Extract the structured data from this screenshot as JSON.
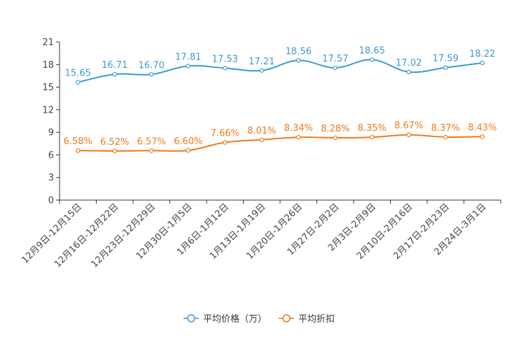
{
  "chart_data": {
    "type": "line",
    "title": "",
    "xlabel": "",
    "ylabel": "",
    "ylim": [
      0,
      21
    ],
    "yticks": [
      0,
      3,
      6,
      9,
      12,
      15,
      18,
      21
    ],
    "grid": false,
    "legend_position": "bottom-center",
    "categories": [
      "12月9日-12月15日",
      "12月16日-12月22日",
      "12月23日-12月29日",
      "12月30日-1月5日",
      "1月6日-1月12日",
      "1月13日-1月19日",
      "1月20日-1月26日",
      "1月27日-2月2日",
      "2月3日-2月9日",
      "2月10日-2月16日",
      "2月17日-2月23日",
      "2月24日-3月1日"
    ],
    "series": [
      {
        "name": "平均价格（万）",
        "color": "#3b9ccf",
        "values": [
          15.65,
          16.71,
          16.7,
          17.81,
          17.53,
          17.21,
          18.56,
          17.57,
          18.65,
          17.02,
          17.59,
          18.22
        ],
        "labels": [
          "15.65",
          "16.71",
          "16.70",
          "17.81",
          "17.53",
          "17.21",
          "18.56",
          "17.57",
          "18.65",
          "17.02",
          "17.59",
          "18.22"
        ]
      },
      {
        "name": "平均折扣",
        "color": "#f07a1a",
        "values": [
          6.58,
          6.52,
          6.57,
          6.6,
          7.66,
          8.01,
          8.34,
          8.28,
          8.35,
          8.67,
          8.37,
          8.43
        ],
        "labels": [
          "6.58%",
          "6.52%",
          "6.57%",
          "6.60%",
          "7.66%",
          "8.01%",
          "8.34%",
          "8.28%",
          "8.35%",
          "8.67%",
          "8.37%",
          "8.43%"
        ]
      }
    ]
  }
}
